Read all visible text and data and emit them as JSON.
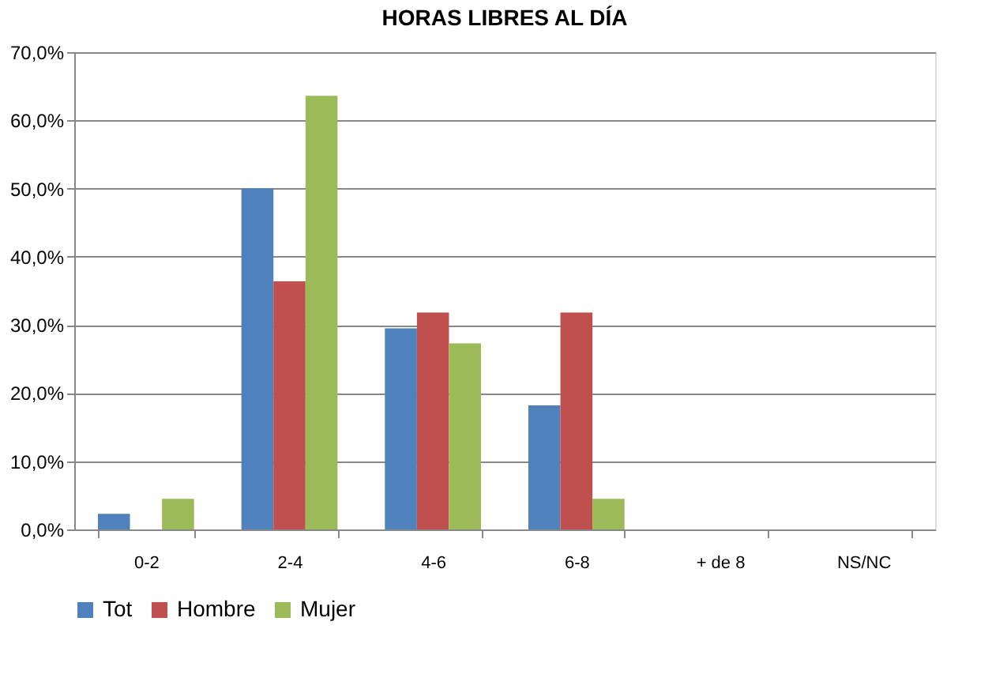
{
  "chart_data": {
    "type": "bar",
    "title": "HORAS LIBRES AL DÍA",
    "categories": [
      "0-2",
      "2-4",
      "4-6",
      "6-8",
      "+ de 8",
      "NS/NC"
    ],
    "series": [
      {
        "name": "Tot",
        "color": "#4f81bd",
        "values": [
          2.3,
          50.0,
          29.5,
          18.2,
          0,
          0
        ]
      },
      {
        "name": "Hombre",
        "color": "#c0504d",
        "values": [
          0,
          36.4,
          31.8,
          31.8,
          0,
          0
        ]
      },
      {
        "name": "Mujer",
        "color": "#9bbb59",
        "values": [
          4.5,
          63.6,
          27.3,
          4.5,
          0,
          0
        ]
      }
    ],
    "ylim": [
      0,
      70
    ],
    "yticks": [
      {
        "value": 0,
        "label": "0,0%"
      },
      {
        "value": 10,
        "label": "10,0%"
      },
      {
        "value": 20,
        "label": "20,0%"
      },
      {
        "value": 30,
        "label": "30,0%"
      },
      {
        "value": 40,
        "label": "40,0%"
      },
      {
        "value": 50,
        "label": "50,0%"
      },
      {
        "value": 60,
        "label": "60,0%"
      },
      {
        "value": 70,
        "label": "70,0%"
      }
    ],
    "grid": "y",
    "legend": "bottom"
  }
}
